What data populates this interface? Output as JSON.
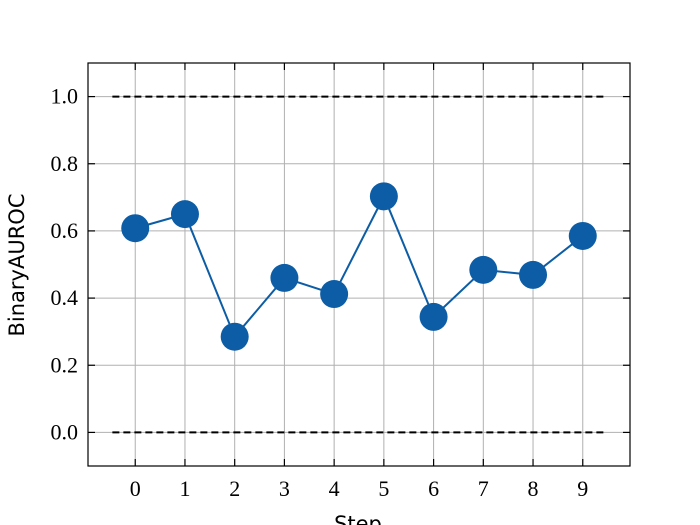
{
  "chart_data": {
    "type": "line",
    "x_label": "Step",
    "y_label": "BinaryAUROC",
    "x": [
      0,
      1,
      2,
      3,
      4,
      5,
      6,
      7,
      8,
      9
    ],
    "series": [
      {
        "name": "BinaryAUROC",
        "color": "#0c5da5",
        "values": [
          0.608,
          0.65,
          0.285,
          0.46,
          0.412,
          0.703,
          0.344,
          0.484,
          0.469,
          0.585
        ]
      }
    ],
    "hlines": [
      0,
      1
    ],
    "xlim": [
      -0.95,
      9.95
    ],
    "ylim": [
      -0.1,
      1.1
    ],
    "xticks": [
      0,
      1,
      2,
      3,
      4,
      5,
      6,
      7,
      8,
      9
    ],
    "yticks": [
      {
        "value": 0,
        "label": "0.0"
      },
      {
        "value": 0.2,
        "label": "0.2"
      },
      {
        "value": 0.4,
        "label": "0.4"
      },
      {
        "value": 0.6,
        "label": "0.6"
      },
      {
        "value": 0.8,
        "label": "0.8"
      },
      {
        "value": 1,
        "label": "1.0"
      }
    ],
    "grid": true
  }
}
